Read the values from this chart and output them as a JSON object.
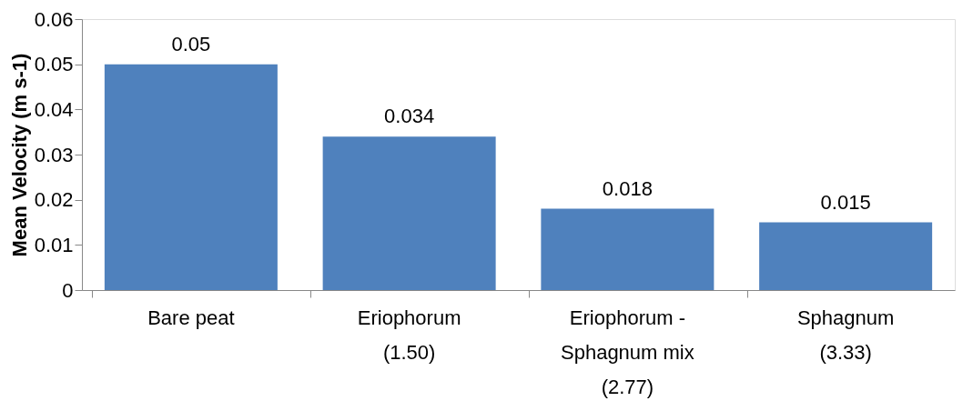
{
  "chart_data": {
    "type": "bar",
    "ylabel": "Mean Velocity (m s-1)",
    "categories": [
      "Bare peat",
      "Eriophorum\n\n(1.50)",
      "Eriophorum -\nSphagnum mix\n(2.77)",
      "Sphagnum\n\n(3.33)"
    ],
    "values": [
      0.05,
      0.034,
      0.018,
      0.015
    ],
    "color": "#4f81bd",
    "ylim": [
      0,
      0.06
    ],
    "yticks": [
      0,
      0.01,
      0.02,
      0.03,
      0.04,
      0.05,
      0.06
    ],
    "data_labels": true
  }
}
